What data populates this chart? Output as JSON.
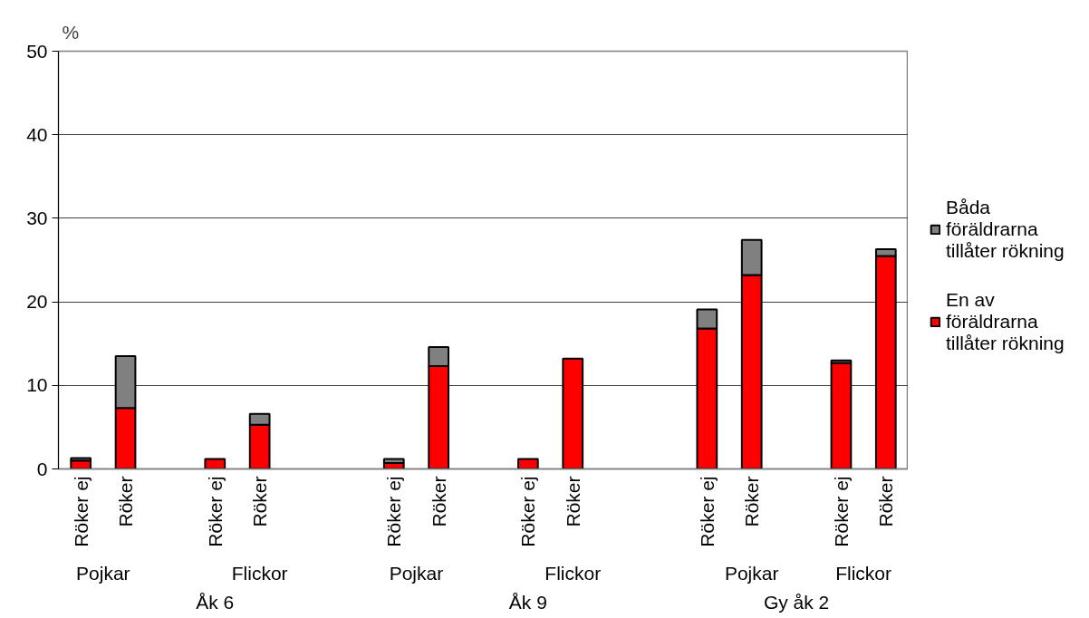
{
  "chart_data": {
    "type": "bar",
    "stacked": true,
    "ylabel": "%",
    "categories": [
      "Röker ej",
      "Röker",
      null,
      "Röker ej",
      "Röker",
      null,
      null,
      "Röker ej",
      "Röker",
      null,
      "Röker ej",
      "Röker",
      null,
      null,
      "Röker ej",
      "Röker",
      null,
      "Röker ej",
      "Röker"
    ],
    "series": [
      {
        "name": "En av föräldrarna tillåter rökning",
        "color": "#ff0000",
        "values": [
          1.0,
          7.3,
          null,
          1.2,
          5.3,
          null,
          null,
          0.7,
          12.3,
          null,
          1.2,
          13.2,
          null,
          null,
          16.8,
          23.2,
          null,
          12.7,
          25.5
        ]
      },
      {
        "name": "Båda föräldrarna tillåter rökning",
        "color": "#808080",
        "values": [
          0.3,
          6.2,
          null,
          null,
          1.3,
          null,
          null,
          0.5,
          2.3,
          null,
          null,
          null,
          null,
          null,
          2.3,
          4.2,
          null,
          0.3,
          0.8
        ]
      }
    ],
    "ylim": [
      0,
      50
    ],
    "yticks": [
      0,
      10,
      20,
      30,
      40,
      50
    ],
    "grid": "y",
    "legend": "right",
    "annotations": [
      "Pojkar",
      "Flickor",
      "Pojkar",
      "Flickor",
      "Pojkar",
      "Flickor",
      "Åk 6",
      "Åk 9",
      "Gy åk 2"
    ]
  }
}
